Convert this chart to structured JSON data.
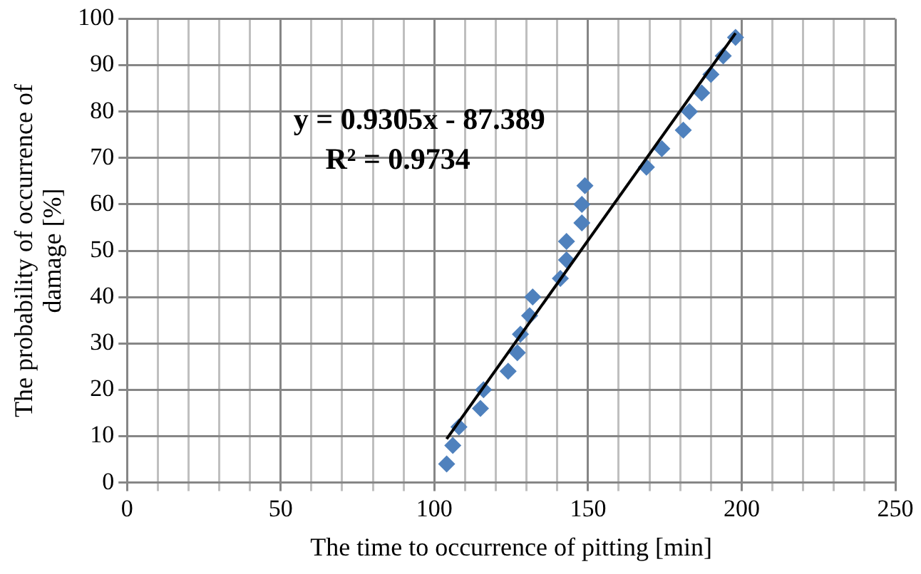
{
  "chart_data": {
    "type": "scatter",
    "xlabel": "The time to occurrence of pitting [min]",
    "ylabel": "The probability of occurrence of damage [%]",
    "series": [
      {
        "type": "scatter",
        "color": "#4f81bd",
        "marker": "diamond",
        "x": [
          104,
          106,
          108,
          115,
          116,
          124,
          127,
          128,
          131,
          132,
          141,
          143,
          143,
          148,
          148,
          149,
          169,
          174,
          181,
          183,
          187,
          190,
          194,
          198
        ],
        "values": [
          4,
          8,
          12,
          16,
          20,
          24,
          28,
          32,
          36,
          40,
          44,
          48,
          52,
          56,
          60,
          64,
          68,
          72,
          76,
          80,
          84,
          88,
          92,
          96
        ]
      },
      {
        "type": "line",
        "color": "#000000",
        "marker": "none",
        "x": [
          104,
          198
        ],
        "values": [
          9.4,
          96.9
        ]
      }
    ],
    "annotations": [
      "y = 0.9305x - 87.389",
      "R² = 0.9734"
    ],
    "xlim": [
      0,
      250
    ],
    "ylim": [
      0,
      100
    ],
    "xticks": [
      0,
      {
        "value": 10,
        "label": null
      },
      {
        "value": 20,
        "label": null
      },
      {
        "value": 30,
        "label": null
      },
      {
        "value": 40,
        "label": null
      },
      50,
      {
        "value": 60,
        "label": null
      },
      {
        "value": 70,
        "label": null
      },
      {
        "value": 80,
        "label": null
      },
      {
        "value": 90,
        "label": null
      },
      100,
      {
        "value": 110,
        "label": null
      },
      {
        "value": 120,
        "label": null
      },
      {
        "value": 130,
        "label": null
      },
      {
        "value": 140,
        "label": null
      },
      150,
      {
        "value": 160,
        "label": null
      },
      {
        "value": 170,
        "label": null
      },
      {
        "value": 180,
        "label": null
      },
      {
        "value": 190,
        "label": null
      },
      200,
      {
        "value": 210,
        "label": null
      },
      {
        "value": 220,
        "label": null
      },
      {
        "value": 230,
        "label": null
      },
      {
        "value": 240,
        "label": null
      },
      250
    ],
    "yticks": [
      0,
      10,
      20,
      30,
      40,
      50,
      60,
      70,
      80,
      90,
      100
    ],
    "grid": true,
    "legend": false
  }
}
